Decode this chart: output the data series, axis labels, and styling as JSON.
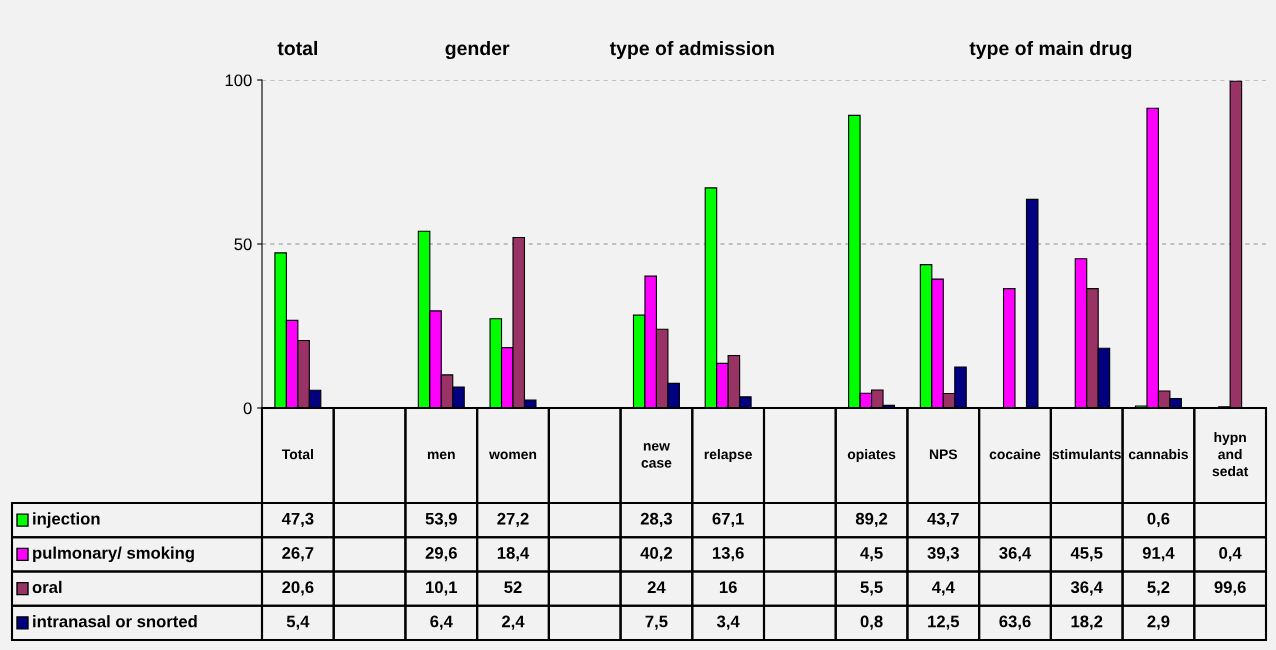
{
  "chart_data": {
    "type": "bar",
    "categories": [
      "Total",
      null,
      "men",
      "women",
      null,
      "new case",
      "relapse",
      null,
      "opiates",
      "NPS",
      "cocaine",
      "stimulants",
      "cannabis",
      "hypn and sedat"
    ],
    "series": [
      {
        "name": "injection",
        "color": "#00ff00",
        "values": [
          47.3,
          null,
          53.9,
          27.2,
          null,
          28.3,
          67.1,
          null,
          89.2,
          43.7,
          null,
          null,
          0.6,
          null
        ],
        "value_labels": [
          "47,3",
          null,
          "53,9",
          "27,2",
          null,
          "28,3",
          "67,1",
          null,
          "89,2",
          "43,7",
          null,
          null,
          "0,6",
          null
        ]
      },
      {
        "name": "pulmonary/ smoking",
        "color": "#ff00ff",
        "values": [
          26.7,
          null,
          29.6,
          18.4,
          null,
          40.2,
          13.6,
          null,
          4.5,
          39.3,
          36.4,
          45.5,
          91.4,
          0.4
        ],
        "value_labels": [
          "26,7",
          null,
          "29,6",
          "18,4",
          null,
          "40,2",
          "13,6",
          null,
          "4,5",
          "39,3",
          "36,4",
          "45,5",
          "91,4",
          "0,4"
        ]
      },
      {
        "name": "oral",
        "color": "#993366",
        "values": [
          20.6,
          null,
          10.1,
          52,
          null,
          24,
          16,
          null,
          5.5,
          4.4,
          null,
          36.4,
          5.2,
          99.6
        ],
        "value_labels": [
          "20,6",
          null,
          "10,1",
          "52",
          null,
          "24",
          "16",
          null,
          "5,5",
          "4,4",
          null,
          "36,4",
          "5,2",
          "99,6"
        ]
      },
      {
        "name": "intranasal or snorted",
        "color": "#000080",
        "values": [
          5.4,
          null,
          6.4,
          2.4,
          null,
          7.5,
          3.4,
          null,
          0.8,
          12.5,
          63.6,
          18.2,
          2.9,
          null
        ],
        "value_labels": [
          "5,4",
          null,
          "6,4",
          "2,4",
          null,
          "7,5",
          "3,4",
          null,
          "0,8",
          "12,5",
          "63,6",
          "18,2",
          "2,9",
          null
        ]
      }
    ],
    "annotations": [
      "total",
      "gender",
      "type of admission",
      "type of main drug"
    ],
    "ylim": [
      0,
      100
    ],
    "yticks": [
      0,
      50,
      100
    ],
    "grid": "y",
    "legend": "bottom"
  }
}
